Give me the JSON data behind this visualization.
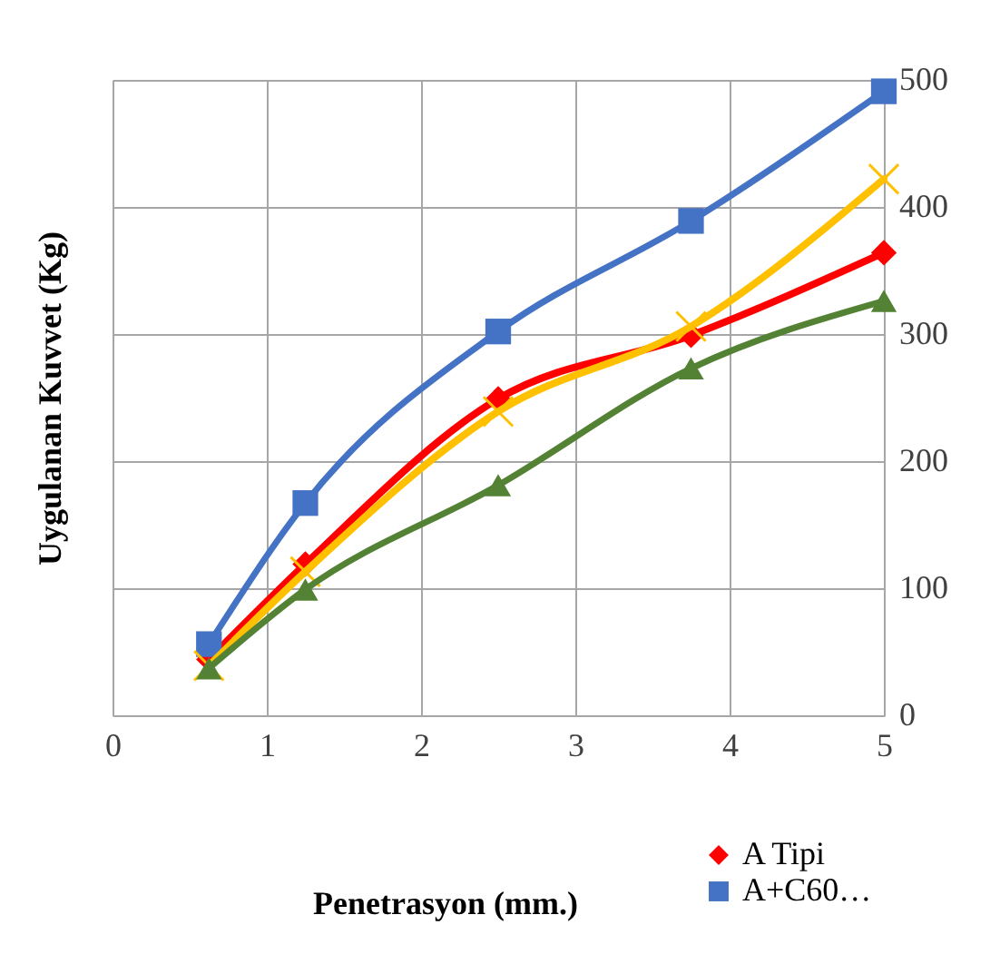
{
  "chart_data": {
    "type": "line",
    "xlabel": "Penetrasyon (mm.)",
    "ylabel": "Uygulanan Kuvvet (Kg)",
    "x": [
      0.625,
      1.25,
      2.5,
      3.75,
      5
    ],
    "series": [
      {
        "name": "A Tipi",
        "color": "#ff0000",
        "marker": "diamond",
        "values": [
          44,
          119,
          249,
          299,
          364
        ]
      },
      {
        "name": "A+C60…",
        "color": "#4472c4",
        "marker": "square",
        "values": [
          56,
          167,
          302,
          389,
          491
        ]
      },
      {
        "color": "#ffc000",
        "marker": "cross",
        "values": [
          39,
          113,
          239,
          306,
          422
        ]
      },
      {
        "color": "#548235",
        "marker": "triangle",
        "values": [
          37,
          99,
          181,
          273,
          326
        ]
      }
    ],
    "xlim": [
      0,
      5
    ],
    "xticks": [
      0,
      1,
      2,
      3,
      4,
      5
    ],
    "ylim": [
      0,
      500
    ],
    "yticks": [
      0,
      100,
      200,
      300,
      400,
      500
    ],
    "grid": true,
    "legend": "bottom right"
  }
}
